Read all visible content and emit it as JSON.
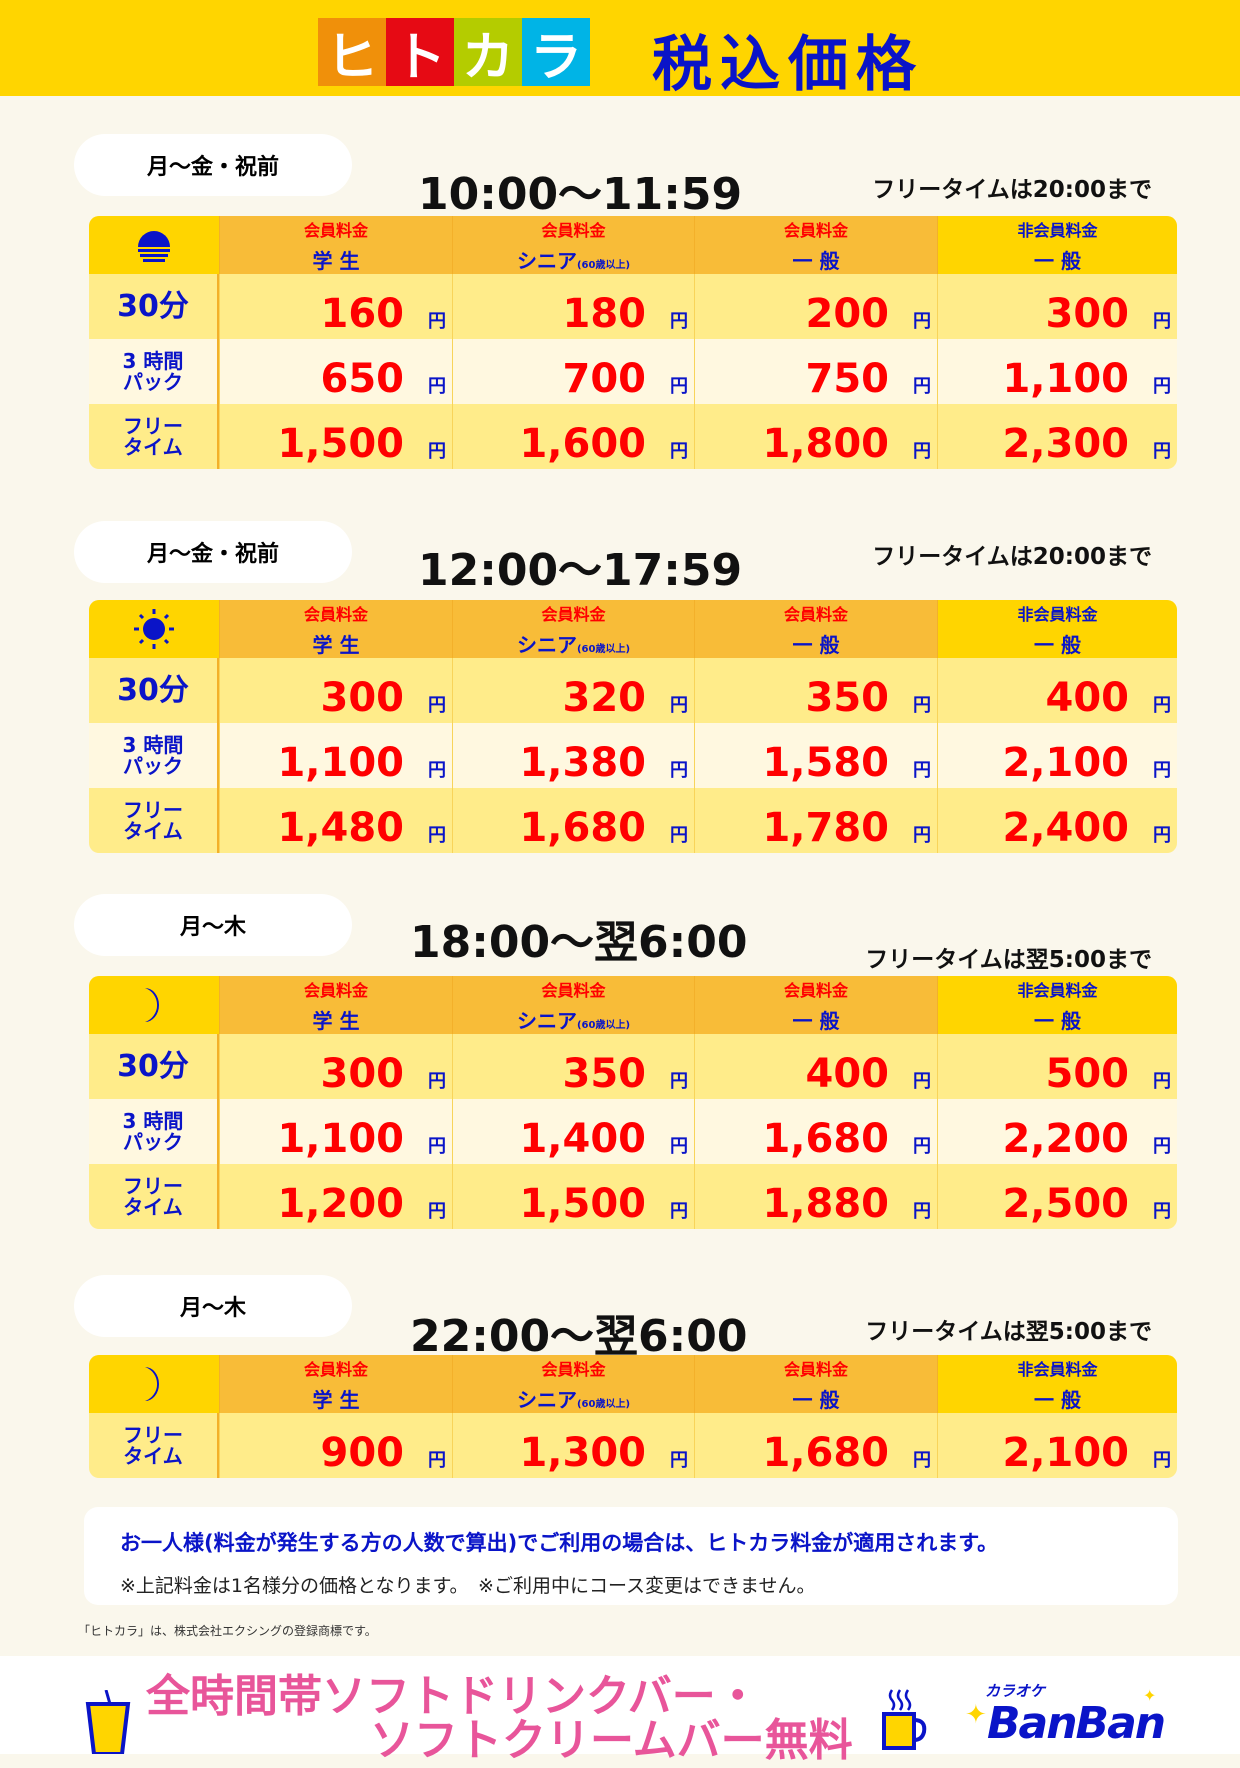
{
  "header": {
    "logo": [
      "ヒ",
      "ト",
      "カ",
      "ラ"
    ],
    "logo_colors": [
      "#F0900A",
      "#E60A14",
      "#B4CC00",
      "#00B4E6"
    ],
    "title": "税込価格"
  },
  "columns": [
    {
      "t1": "会員料金",
      "t2": "学 生",
      "sub": ""
    },
    {
      "t1": "会員料金",
      "t2": "シニア",
      "sub": "(60歳以上)"
    },
    {
      "t1": "会員料金",
      "t2": "一 般",
      "sub": ""
    },
    {
      "t1": "非会員料金",
      "t2": "一 般",
      "sub": ""
    }
  ],
  "yen": "円",
  "sections": [
    {
      "days": "月〜金・祝前",
      "time": "10:00〜11:59",
      "free_note": "フリータイムは20:00まで",
      "icon": "sunrise-icon",
      "rows": [
        {
          "label": [
            "30分"
          ],
          "big": true,
          "prices": [
            "160",
            "180",
            "200",
            "300"
          ]
        },
        {
          "label": [
            "3 時間",
            "パック"
          ],
          "prices": [
            "650",
            "700",
            "750",
            "1,100"
          ]
        },
        {
          "label": [
            "フリー",
            "タイム"
          ],
          "prices": [
            "1,500",
            "1,600",
            "1,800",
            "2,300"
          ]
        }
      ]
    },
    {
      "days": "月〜金・祝前",
      "time": "12:00〜17:59",
      "free_note": "フリータイムは20:00まで",
      "icon": "sun-icon",
      "rows": [
        {
          "label": [
            "30分"
          ],
          "big": true,
          "prices": [
            "300",
            "320",
            "350",
            "400"
          ]
        },
        {
          "label": [
            "3 時間",
            "パック"
          ],
          "prices": [
            "1,100",
            "1,380",
            "1,580",
            "2,100"
          ]
        },
        {
          "label": [
            "フリー",
            "タイム"
          ],
          "prices": [
            "1,480",
            "1,680",
            "1,780",
            "2,400"
          ]
        }
      ]
    },
    {
      "days": "月〜木",
      "time": "18:00〜翌6:00",
      "free_note": "フリータイムは翌5:00まで",
      "icon": "moon-icon",
      "rows": [
        {
          "label": [
            "30分"
          ],
          "big": true,
          "prices": [
            "300",
            "350",
            "400",
            "500"
          ]
        },
        {
          "label": [
            "3 時間",
            "パック"
          ],
          "prices": [
            "1,100",
            "1,400",
            "1,680",
            "2,200"
          ]
        },
        {
          "label": [
            "フリー",
            "タイム"
          ],
          "prices": [
            "1,200",
            "1,500",
            "1,880",
            "2,500"
          ]
        }
      ]
    },
    {
      "days": "月〜木",
      "time": "22:00〜翌6:00",
      "free_note": "フリータイムは翌5:00まで",
      "icon": "moon-icon",
      "rows": [
        {
          "label": [
            "フリー",
            "タイム"
          ],
          "prices": [
            "900",
            "1,300",
            "1,680",
            "2,100"
          ]
        }
      ]
    }
  ],
  "note": {
    "line1": "お一人様(料金が発生する方の人数で算出)でご利用の場合は、ヒトカラ料金が適用されます。",
    "line2": "※上記料金は1名様分の価格となります。　※ご利用中にコース変更はできません。"
  },
  "trademark": "「ヒトカラ」は、株式会社エクシングの登録商標です。",
  "footer": {
    "promo_line1": "全時間帯ソフトドリンクバー・",
    "promo_line2": "ソフトクリームバー無料",
    "brand_small": "カラオケ",
    "brand": "BanBan"
  },
  "colors": {
    "accent_blue": "#0A14C8",
    "price_red": "#FF0000",
    "header_yellow": "#FFD500",
    "promo_pink": "#E8559A"
  }
}
